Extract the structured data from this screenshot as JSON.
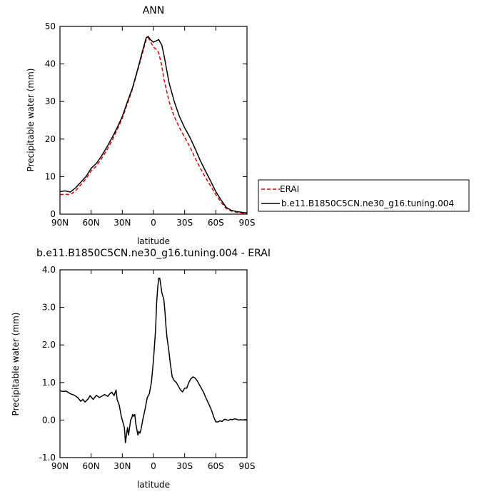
{
  "chart_data": [
    {
      "type": "line",
      "title": "ANN",
      "xlabel": "latitude",
      "ylabel": "Precipitable water (mm)",
      "xlim": [
        90,
        -90
      ],
      "ylim": [
        0,
        50
      ],
      "grid": false,
      "legend": "right",
      "xticks": [
        {
          "value": 90,
          "label": "90N"
        },
        {
          "value": 60,
          "label": "60N"
        },
        {
          "value": 30,
          "label": "30N"
        },
        {
          "value": 0,
          "label": "0"
        },
        {
          "value": -30,
          "label": "30S"
        },
        {
          "value": -60,
          "label": "60S"
        },
        {
          "value": -90,
          "label": "90S"
        }
      ],
      "yticks": [
        0,
        10,
        20,
        30,
        40,
        50
      ],
      "series": [
        {
          "name": "ERAI",
          "color": "#e00000",
          "dash": "dashed",
          "x": [
            90,
            85,
            80,
            75,
            70,
            65,
            60,
            55,
            50,
            45,
            40,
            35,
            30,
            25,
            20,
            15,
            10,
            7,
            5,
            3,
            0,
            -3,
            -5,
            -8,
            -10,
            -15,
            -20,
            -25,
            -30,
            -35,
            -40,
            -45,
            -50,
            -55,
            -60,
            -65,
            -70,
            -75,
            -80,
            -85,
            -90
          ],
          "y": [
            5.2,
            5.3,
            5.2,
            6.2,
            7.8,
            9.4,
            11.5,
            12.8,
            14.8,
            17.0,
            19.5,
            22.5,
            25.5,
            29.5,
            33.5,
            38.5,
            43.5,
            46.5,
            47.0,
            46.0,
            44.5,
            43.8,
            43.0,
            39.5,
            36.0,
            30.0,
            26.0,
            23.0,
            20.5,
            18.0,
            15.0,
            12.3,
            9.8,
            7.5,
            5.2,
            3.2,
            1.5,
            0.8,
            0.5,
            0.3,
            0.2
          ]
        },
        {
          "name": "b.e11.B1850C5CN.ne30_g16.tuning.004",
          "color": "#000000",
          "dash": "solid",
          "x": [
            90,
            85,
            80,
            75,
            70,
            65,
            60,
            55,
            50,
            45,
            40,
            35,
            30,
            25,
            20,
            15,
            10,
            7,
            5,
            3,
            0,
            -3,
            -5,
            -8,
            -10,
            -15,
            -20,
            -25,
            -30,
            -35,
            -40,
            -45,
            -50,
            -55,
            -60,
            -65,
            -70,
            -75,
            -80,
            -85,
            -90
          ],
          "y": [
            6.0,
            6.2,
            5.9,
            7.0,
            8.5,
            10.0,
            12.2,
            13.5,
            15.5,
            17.8,
            20.3,
            23.0,
            26.0,
            30.0,
            33.8,
            38.8,
            44.0,
            47.0,
            47.3,
            46.5,
            45.8,
            46.2,
            46.5,
            45.0,
            42.5,
            35.0,
            30.0,
            26.0,
            23.0,
            20.5,
            17.5,
            14.3,
            11.5,
            8.8,
            6.0,
            3.8,
            1.8,
            1.0,
            0.7,
            0.5,
            0.3
          ]
        }
      ]
    },
    {
      "type": "line",
      "title": "b.e11.B1850C5CN.ne30_g16.tuning.004 - ERAI",
      "xlabel": "latitude",
      "ylabel": "Precipitable water (mm)",
      "xlim": [
        90,
        -90
      ],
      "ylim": [
        -1.0,
        4.0
      ],
      "grid": false,
      "xticks": [
        {
          "value": 90,
          "label": "90N"
        },
        {
          "value": 60,
          "label": "60N"
        },
        {
          "value": 30,
          "label": "30N"
        },
        {
          "value": 0,
          "label": "0"
        },
        {
          "value": -30,
          "label": "30S"
        },
        {
          "value": -60,
          "label": "60S"
        },
        {
          "value": -90,
          "label": "90S"
        }
      ],
      "yticks": [
        {
          "value": -1.0,
          "label": "-1.0"
        },
        {
          "value": 0.0,
          "label": "0.0"
        },
        {
          "value": 1.0,
          "label": "1.0"
        },
        {
          "value": 2.0,
          "label": "2.0"
        },
        {
          "value": 3.0,
          "label": "3.0"
        },
        {
          "value": 4.0,
          "label": "4.0"
        }
      ],
      "series": [
        {
          "color": "#000000",
          "dash": "solid",
          "x": [
            90,
            87,
            84,
            80,
            76,
            73,
            70,
            68,
            66,
            63,
            61,
            58,
            55,
            52,
            50,
            47,
            44,
            42,
            40,
            38,
            36,
            35,
            33,
            31,
            29,
            28,
            27,
            25,
            24,
            22,
            21,
            20,
            19,
            18,
            17,
            15,
            14,
            13,
            12,
            10,
            8,
            6,
            4,
            2,
            0,
            -1,
            -2,
            -3,
            -4,
            -5,
            -6,
            -7,
            -8,
            -9,
            -10,
            -11,
            -12,
            -13,
            -14,
            -15,
            -16,
            -17,
            -18,
            -20,
            -22,
            -24,
            -26,
            -28,
            -30,
            -32,
            -34,
            -36,
            -38,
            -40,
            -42,
            -44,
            -46,
            -48,
            -50,
            -52,
            -54,
            -56,
            -58,
            -60,
            -62,
            -64,
            -66,
            -68,
            -70,
            -72,
            -74,
            -76,
            -78,
            -80,
            -82,
            -84,
            -86,
            -88,
            -90
          ],
          "y": [
            0.78,
            0.76,
            0.77,
            0.7,
            0.66,
            0.6,
            0.5,
            0.55,
            0.48,
            0.56,
            0.65,
            0.55,
            0.66,
            0.6,
            0.63,
            0.68,
            0.63,
            0.7,
            0.74,
            0.65,
            0.8,
            0.55,
            0.4,
            0.1,
            -0.1,
            -0.2,
            -0.6,
            -0.2,
            -0.4,
            0.0,
            0.05,
            0.15,
            0.1,
            0.15,
            -0.1,
            -0.4,
            -0.3,
            -0.35,
            -0.25,
            0.05,
            0.3,
            0.6,
            0.7,
            1.0,
            1.6,
            2.0,
            2.4,
            3.1,
            3.5,
            3.78,
            3.78,
            3.6,
            3.4,
            3.3,
            3.2,
            2.9,
            2.5,
            2.2,
            2.0,
            1.8,
            1.55,
            1.35,
            1.15,
            1.05,
            1.0,
            0.9,
            0.8,
            0.75,
            0.85,
            0.85,
            1.0,
            1.1,
            1.15,
            1.12,
            1.05,
            0.95,
            0.85,
            0.75,
            0.62,
            0.5,
            0.38,
            0.25,
            0.08,
            -0.05,
            -0.05,
            -0.02,
            -0.04,
            0.02,
            0.01,
            -0.01,
            0.02,
            0.01,
            0.03,
            0.02,
            0.0,
            0.01,
            0.0,
            0.01,
            0.0
          ]
        }
      ]
    }
  ]
}
